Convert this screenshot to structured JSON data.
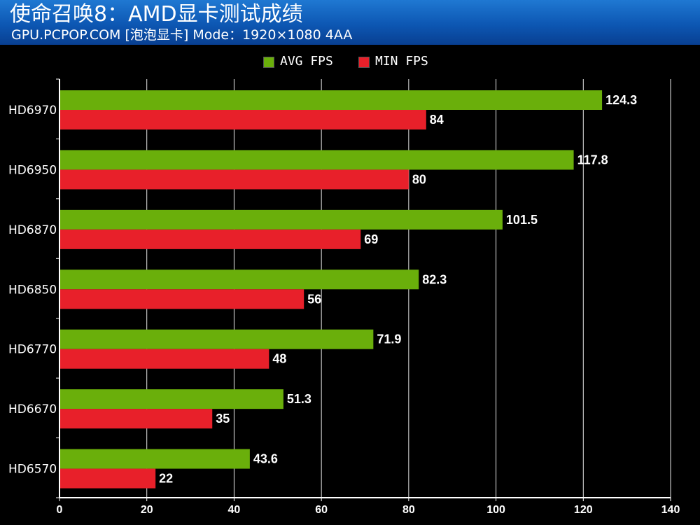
{
  "header": {
    "title": "使命召唤8：AMD显卡测试成绩",
    "subtitle": "GPU.PCPOP.COM [泡泡显卡] Mode：1920×1080 4AA"
  },
  "legend": [
    {
      "label": "AVG FPS",
      "color": "#6aaf0b"
    },
    {
      "label": "MIN FPS",
      "color": "#e8202a"
    }
  ],
  "chart_data": {
    "type": "bar",
    "orientation": "horizontal",
    "title": "使命召唤8：AMD显卡测试成绩",
    "subtitle": "GPU.PCPOP.COM [泡泡显卡] Mode：1920×1080 4AA",
    "categories": [
      "HD6970",
      "HD6950",
      "HD6870",
      "HD6850",
      "HD6770",
      "HD6670",
      "HD6570"
    ],
    "series": [
      {
        "name": "AVG FPS",
        "color": "#6aaf0b",
        "values": [
          124.3,
          117.8,
          101.5,
          82.3,
          71.9,
          51.3,
          43.6
        ],
        "labels": [
          "124.3",
          "117.8",
          "101.5",
          "82.3",
          "71.9",
          "51.3",
          "43.6"
        ]
      },
      {
        "name": "MIN FPS",
        "color": "#e8202a",
        "values": [
          84,
          80,
          69,
          56,
          48,
          35,
          22
        ],
        "labels": [
          "84",
          "80",
          "69",
          "56",
          "48",
          "35",
          "22"
        ]
      }
    ],
    "xlim": [
      0,
      140
    ],
    "xticks": [
      0,
      20,
      40,
      60,
      80,
      100,
      120,
      140
    ],
    "grid": true,
    "legend_position": "top-center"
  }
}
